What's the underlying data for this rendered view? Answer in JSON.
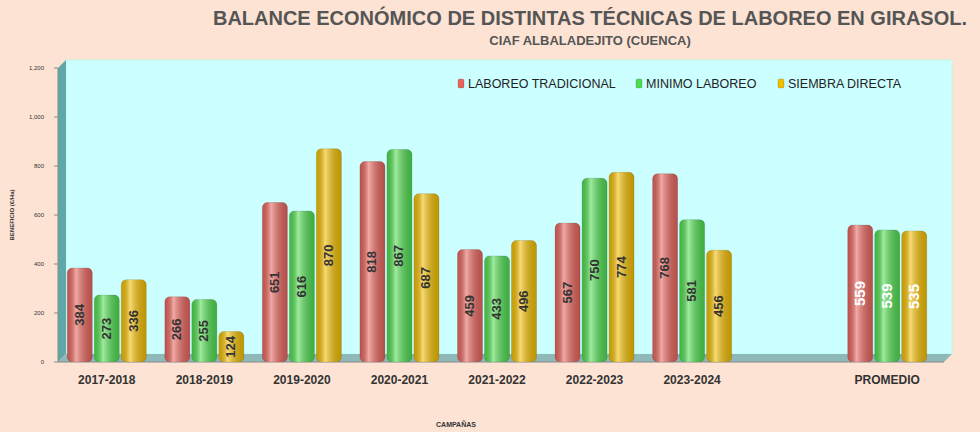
{
  "chart_data": {
    "type": "bar",
    "title": "BALANCE ECONÓMICO DE DISTINTAS TÉCNICAS DE LABOREO EN  GIRASOL.",
    "subtitle": "CIAF ALBALADEJITO (CUENCA)",
    "x_label": "CAMPAÑAS",
    "y_label": "BENEFICIO (€/Ha)",
    "categories": [
      "2017-2018",
      "2018-2019",
      "2019-2020",
      "2020-2021",
      "2021-2022",
      "2022-2023",
      "2023-2024",
      null,
      "PROMEDIO"
    ],
    "series": [
      {
        "name": "LABOREO TRADICIONAL",
        "color": "#e8635c",
        "values": [
          384,
          266,
          651,
          818,
          459,
          567,
          768,
          null,
          559
        ]
      },
      {
        "name": "MINIMO LABOREO",
        "color": "#4fdc4f",
        "values": [
          273,
          255,
          616,
          867,
          433,
          750,
          581,
          null,
          539
        ]
      },
      {
        "name": "SIEMBRA DIRECTA",
        "color": "#f2bd00",
        "values": [
          336,
          124,
          870,
          687,
          496,
          774,
          456,
          null,
          535
        ]
      }
    ],
    "ylim": [
      0,
      1200
    ],
    "yticks": [
      0,
      200,
      400,
      600,
      800,
      {
        "value": 1000,
        "label": "1,000"
      },
      {
        "value": 1200,
        "label": "1,200"
      }
    ],
    "grid": false,
    "legend": "top-right",
    "data_labels": true
  }
}
